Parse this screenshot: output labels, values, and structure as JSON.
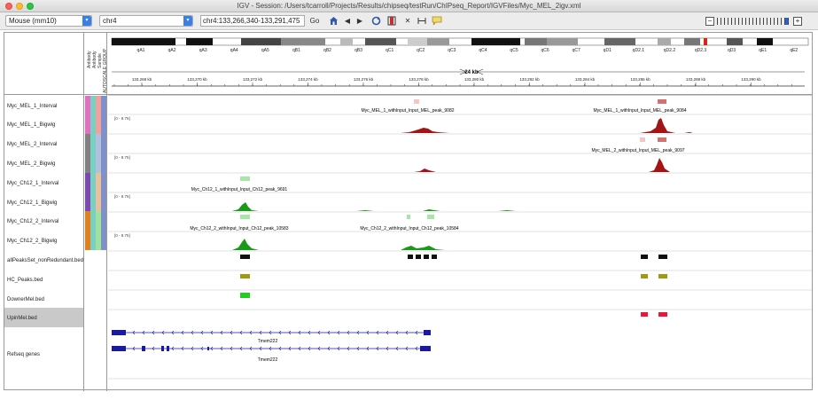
{
  "window": {
    "title": "IGV - Session: /Users/tcarroll/Projects/Results/chipseq/testRun/ChIPseq_Report/IGVFiles/Myc_MEL_2igv.xml"
  },
  "toolbar": {
    "genome": "Mouse (mm10)",
    "chromosome": "chr4",
    "locus": "chr4:133,266,340-133,291,475",
    "go_label": "Go"
  },
  "ideogram": {
    "bands": [
      "qA1",
      "qA2",
      "qA3",
      "qA4",
      "qA5",
      "qB1",
      "qB2",
      "qB3",
      "qC1",
      "qC2",
      "qC3",
      "qC4",
      "qC5",
      "qC6",
      "qC7",
      "qD1",
      "qD2.1",
      "qD2.2",
      "qD2.3",
      "qD3",
      "qE1",
      "qE2"
    ]
  },
  "ruler": {
    "span_label": "24 kb",
    "ticks": [
      "133,268 kb",
      "133,270 kb",
      "133,272 kb",
      "133,274 kb",
      "133,276 kb",
      "133,278 kb",
      "133,280 kb",
      "133,282 kb",
      "133,284 kb",
      "133,286 kb",
      "133,288 kb",
      "133,290 kb"
    ]
  },
  "attribute_headers": [
    "Antibody",
    "Antibody",
    "Sample",
    "AUTOSCALE GROUP"
  ],
  "tracks": [
    {
      "name": "Myc_MEL_1_Interval"
    },
    {
      "name": "Myc_MEL_1_Bigwig",
      "range": "[0 - 8.75]"
    },
    {
      "name": "Myc_MEL_2_Interval"
    },
    {
      "name": "Myc_MEL_2_Bigwig",
      "range": "[0 - 8.75]"
    },
    {
      "name": "Myc_Ch12_1_Interval"
    },
    {
      "name": "Myc_Ch12_1_Bigwig",
      "range": "[0 - 8.75]"
    },
    {
      "name": "Myc_Ch12_2_Interval"
    },
    {
      "name": "Myc_Ch12_2_Bigwig",
      "range": "[0 - 8.75]"
    },
    {
      "name": "allPeaksSet_nonRedundant.bed"
    },
    {
      "name": "HC_Peaks.bed"
    },
    {
      "name": "DownerMel.bed"
    },
    {
      "name": "UpinMel.bed"
    },
    {
      "name": "Refseq genes"
    }
  ],
  "peak_labels": {
    "mel1_a": "Myc_MEL_1_withInput_Input_MEL_peak_9082",
    "mel1_b": "Myc_MEL_1_withInput_Input_MEL_peak_9084",
    "mel2_a": "Myc_MEL_2_withInput_Input_MEL_peak_9097",
    "ch12_1_a": "Myc_Ch12_1_withInput_Input_Ch12_peak_9691",
    "ch12_2_a": "Myc_Ch12_2_withInput_Input_Ch12_peak_10583",
    "ch12_2_b": "Myc_Ch12_2_withInput_Input_Ch12_peak_10584"
  },
  "genes": {
    "gene1": "Tmem222",
    "gene2": "Tmem222"
  },
  "colors": {
    "mel": "#a31515",
    "mel_interval_light": "#f4c5c5",
    "mel_interval_dark": "#d47070",
    "ch12": "#1a9a1a",
    "ch12_interval": "#a8e6a8",
    "peaks": "#111111",
    "hc": "#a09a10",
    "downer": "#22cc22",
    "upin": "#e8183a",
    "gene": "#1a1aa0"
  }
}
